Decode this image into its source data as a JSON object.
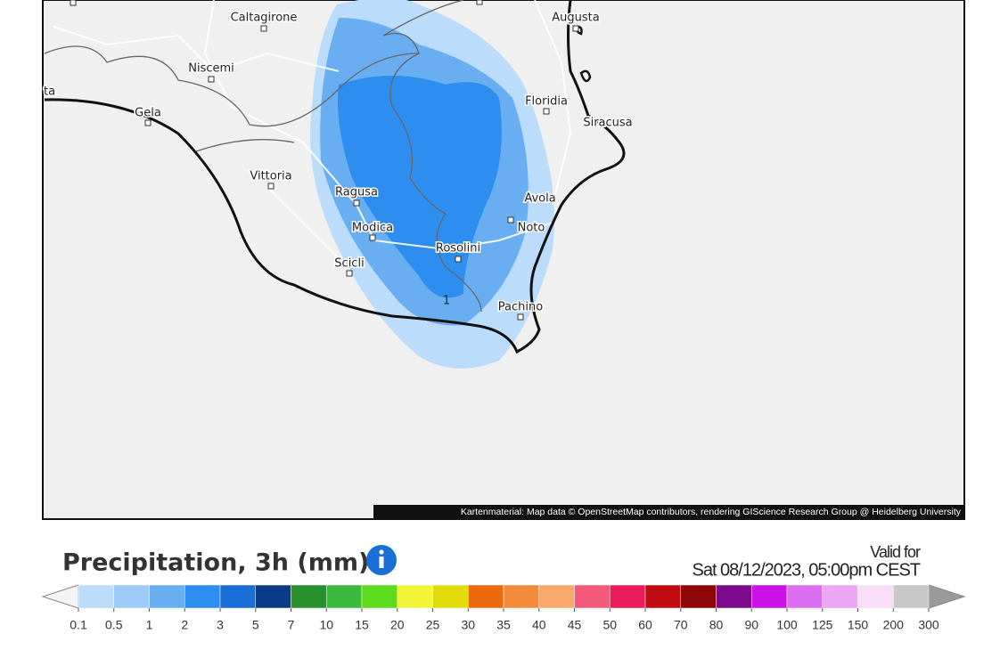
{
  "map": {
    "labels": [
      "Caltagirone",
      "Augusta",
      "Niscemi",
      "Gela",
      "Floridia",
      "Siracusa",
      "Vittoria",
      "Ragusa",
      "Avola",
      "Noto",
      "Modica",
      "Rosolini",
      "Scicli",
      "Pachino",
      "ta",
      "1"
    ],
    "attribution": "Kartenmaterial: Map data © OpenStreetMap contributors, rendering GIScience Research Group @ Heidelberg University"
  },
  "legend": {
    "title": "Precipitation, 3h (mm)",
    "valid_label": "Valid for",
    "valid_time": "Sat 08/12/2023, 05:00pm CEST",
    "ticks": [
      0.1,
      0.5,
      1,
      2,
      3,
      5,
      7,
      10,
      15,
      20,
      25,
      30,
      35,
      40,
      45,
      50,
      60,
      70,
      80,
      90,
      100,
      125,
      150,
      200,
      300
    ],
    "colors": [
      "#bcdcfc",
      "#9ecbf7",
      "#6aaef2",
      "#2e8ef0",
      "#1a6fd6",
      "#0b3a86",
      "#28902c",
      "#3cba3c",
      "#5cdc1c",
      "#f4f43a",
      "#e2dc0c",
      "#ec6a0c",
      "#f48a3c",
      "#f8aa6c",
      "#f45a7a",
      "#e81c5c",
      "#c00c10",
      "#8c0808",
      "#7c0a8c",
      "#cc10e8",
      "#dc6ef0",
      "#eca8f4",
      "#f8dcf8",
      "#c8c8c8"
    ],
    "under_color": "#f4f4f4",
    "over_color": "#9a9a9a"
  }
}
